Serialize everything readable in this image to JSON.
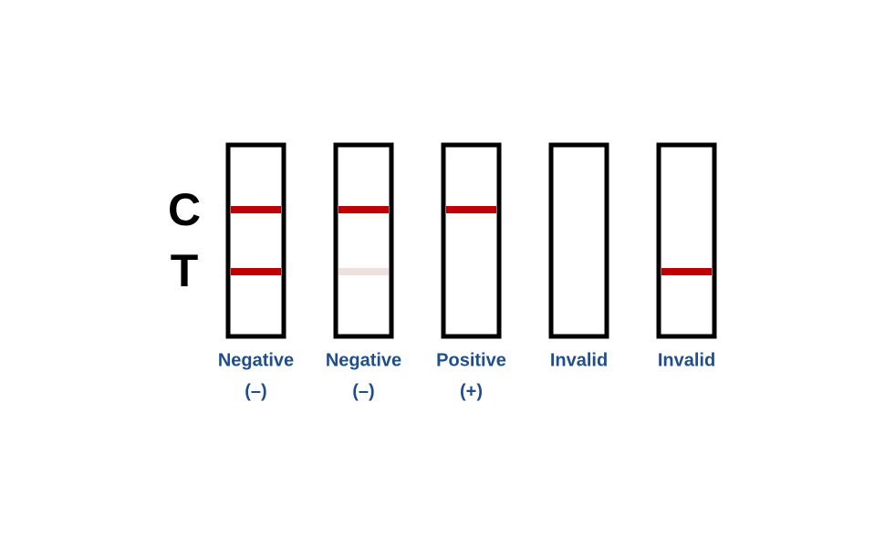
{
  "axis_labels": [
    "C",
    "T"
  ],
  "strips": [
    {
      "label": [
        "Negative",
        "(–)"
      ]
    },
    {
      "label": [
        "Negative",
        "(–)"
      ]
    },
    {
      "label": [
        "Positive",
        "(+)"
      ]
    },
    {
      "label": [
        "Invalid"
      ]
    },
    {
      "label": [
        "Invalid"
      ]
    }
  ]
}
